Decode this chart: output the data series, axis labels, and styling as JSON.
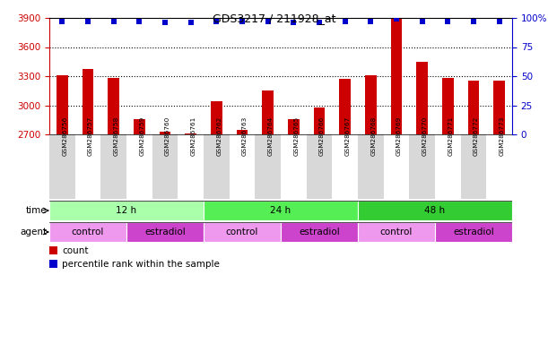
{
  "title": "GDS3217 / 211928_at",
  "samples": [
    "GSM286756",
    "GSM286757",
    "GSM286758",
    "GSM286759",
    "GSM286760",
    "GSM286761",
    "GSM286762",
    "GSM286763",
    "GSM286764",
    "GSM286765",
    "GSM286766",
    "GSM286767",
    "GSM286768",
    "GSM286769",
    "GSM286770",
    "GSM286771",
    "GSM286772",
    "GSM286773"
  ],
  "counts": [
    3305,
    3370,
    3280,
    2860,
    2730,
    2705,
    3040,
    2750,
    3150,
    2860,
    2980,
    3270,
    3305,
    3900,
    3450,
    3285,
    3255,
    3255
  ],
  "percentile_ranks": [
    97,
    97,
    97,
    97,
    96,
    96,
    97,
    97,
    97,
    96,
    96,
    97,
    97,
    99,
    97,
    97,
    97,
    97
  ],
  "ylim_left": [
    2700,
    3900
  ],
  "ylim_right": [
    0,
    100
  ],
  "yticks_left": [
    2700,
    3000,
    3300,
    3600,
    3900
  ],
  "yticks_right": [
    0,
    25,
    50,
    75,
    100
  ],
  "bar_color": "#cc0000",
  "dot_color": "#0000cc",
  "grid_color": "#000000",
  "title_color": "#000000",
  "left_tick_color": "#cc0000",
  "right_tick_color": "#0000cc",
  "time_groups": [
    {
      "label": "12 h",
      "start": 0,
      "end": 6,
      "color": "#aaffaa"
    },
    {
      "label": "24 h",
      "start": 6,
      "end": 12,
      "color": "#55ee55"
    },
    {
      "label": "48 h",
      "start": 12,
      "end": 18,
      "color": "#33cc33"
    }
  ],
  "agent_groups": [
    {
      "label": "control",
      "start": 0,
      "end": 3,
      "color": "#ee99ee"
    },
    {
      "label": "estradiol",
      "start": 3,
      "end": 6,
      "color": "#cc44cc"
    },
    {
      "label": "control",
      "start": 6,
      "end": 9,
      "color": "#ee99ee"
    },
    {
      "label": "estradiol",
      "start": 9,
      "end": 12,
      "color": "#cc44cc"
    },
    {
      "label": "control",
      "start": 12,
      "end": 15,
      "color": "#ee99ee"
    },
    {
      "label": "estradiol",
      "start": 15,
      "end": 18,
      "color": "#cc44cc"
    }
  ],
  "legend_count_color": "#cc0000",
  "legend_dot_color": "#0000cc",
  "xlabel_time": "time",
  "xlabel_agent": "agent",
  "legend_count_label": "count",
  "legend_percentile_label": "percentile rank within the sample",
  "bar_width": 0.45,
  "background_color": "#ffffff",
  "tick_bg_colors": [
    "#d8d8d8",
    "#ffffff"
  ]
}
